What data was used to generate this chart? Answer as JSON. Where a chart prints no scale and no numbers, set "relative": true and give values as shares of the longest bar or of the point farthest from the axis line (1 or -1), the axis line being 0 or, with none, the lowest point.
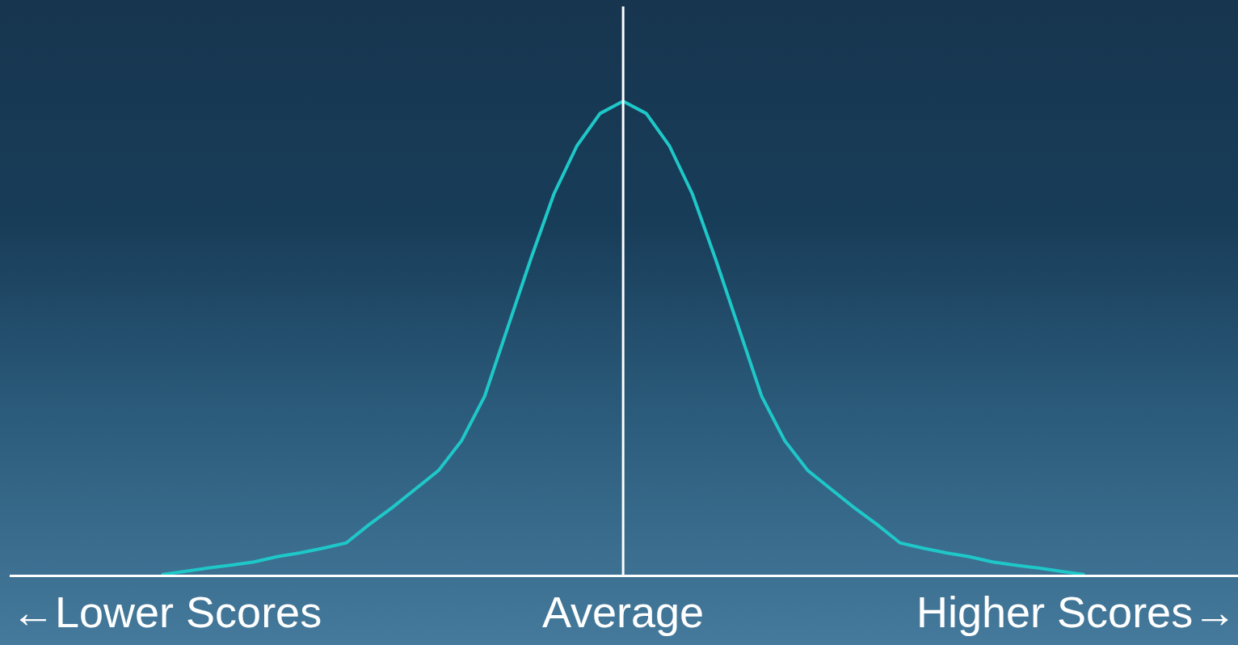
{
  "chart_data": {
    "type": "line",
    "relative": true,
    "marker": "none",
    "line_style": "solid",
    "categories": [
      null,
      null,
      null,
      null,
      null,
      null,
      null,
      null,
      null,
      null,
      null,
      null,
      null,
      null,
      null,
      null,
      null,
      null,
      null,
      null,
      null,
      null,
      null,
      null,
      null,
      null,
      null,
      null,
      null,
      null,
      null,
      null,
      null,
      null,
      null,
      null,
      null,
      null,
      null,
      null,
      null
    ],
    "series": [
      {
        "color": "#1fc8c8",
        "values": [
          0,
          0.007,
          0.014,
          0.02,
          0.027,
          0.038,
          0.046,
          0.056,
          0.067,
          0.106,
          0.142,
          0.181,
          0.22,
          0.283,
          0.377,
          0.522,
          0.667,
          0.804,
          0.906,
          0.974,
          1,
          0.974,
          0.906,
          0.804,
          0.667,
          0.522,
          0.377,
          0.283,
          0.22,
          0.181,
          0.142,
          0.106,
          0.067,
          0.056,
          0.046,
          0.038,
          0.027,
          0.02,
          0.014,
          0.007,
          0
        ]
      }
    ],
    "annotations": [
      "←Lower Scores",
      "Average",
      "Higher Scores→"
    ]
  }
}
